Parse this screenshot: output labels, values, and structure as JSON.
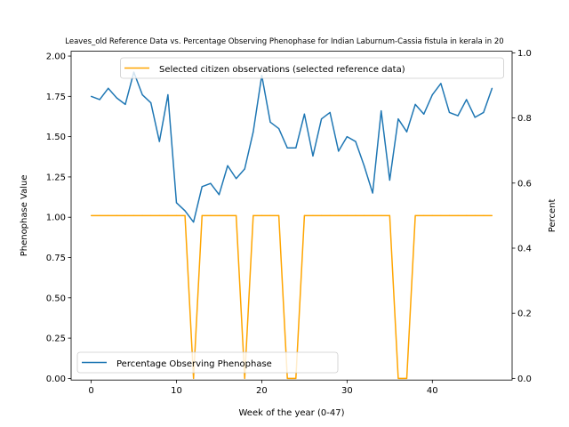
{
  "chart_data": {
    "type": "line",
    "title": "Leaves_old Reference Data vs. Percentage Observing Phenophase for Indian Laburnum-Cassia fistula in kerala in 20",
    "xlabel": "Week of the year (0-47)",
    "ylabel_left": "Phenophase Value",
    "ylabel_right": "Percent",
    "xlim": [
      -2.35,
      49.35
    ],
    "ylim_left": [
      -0.01,
      2.03
    ],
    "ylim_right": [
      -0.005,
      1.005
    ],
    "x_ticks": [
      0,
      10,
      20,
      30,
      40
    ],
    "x_tick_labels": [
      "0",
      "10",
      "20",
      "30",
      "40"
    ],
    "y_left_ticks": [
      0.0,
      0.25,
      0.5,
      0.75,
      1.0,
      1.25,
      1.5,
      1.75,
      2.0
    ],
    "y_left_tick_labels": [
      "0.00",
      "0.25",
      "0.50",
      "0.75",
      "1.00",
      "1.25",
      "1.50",
      "1.75",
      "2.00"
    ],
    "y_right_ticks": [
      0.0,
      0.2,
      0.4,
      0.6,
      0.8,
      1.0
    ],
    "y_right_tick_labels": [
      "0.0",
      "0.2",
      "0.4",
      "0.6",
      "0.8",
      "1.0"
    ],
    "grid": false,
    "series": [
      {
        "name": "Percentage Observing Phenophase",
        "axis": "left",
        "color": "#1f77b4",
        "legend_position": "lower-left",
        "x": [
          0,
          1,
          2,
          3,
          4,
          5,
          6,
          7,
          8,
          9,
          10,
          11,
          12,
          13,
          14,
          15,
          16,
          17,
          18,
          19,
          20,
          21,
          22,
          23,
          24,
          25,
          26,
          27,
          28,
          29,
          30,
          31,
          32,
          33,
          34,
          35,
          36,
          37,
          38,
          39,
          40,
          41,
          42,
          43,
          44,
          45,
          46,
          47
        ],
        "values": [
          1.75,
          1.73,
          1.8,
          1.74,
          1.7,
          1.9,
          1.76,
          1.71,
          1.47,
          1.76,
          1.09,
          1.04,
          0.97,
          1.19,
          1.21,
          1.14,
          1.32,
          1.24,
          1.3,
          1.53,
          1.88,
          1.59,
          1.55,
          1.43,
          1.43,
          1.64,
          1.38,
          1.61,
          1.65,
          1.41,
          1.5,
          1.47,
          1.32,
          1.15,
          1.66,
          1.23,
          1.61,
          1.53,
          1.7,
          1.64,
          1.76,
          1.83,
          1.65,
          1.63,
          1.73,
          1.62,
          1.65,
          1.8
        ]
      },
      {
        "name": "Selected citizen observations (selected reference data)",
        "axis": "right",
        "color": "#ffa500",
        "legend_position": "top-right",
        "x": [
          0,
          1,
          2,
          3,
          4,
          5,
          6,
          7,
          8,
          9,
          10,
          11,
          12,
          13,
          14,
          15,
          16,
          17,
          18,
          19,
          20,
          21,
          22,
          23,
          24,
          25,
          26,
          27,
          28,
          29,
          30,
          31,
          32,
          33,
          34,
          35,
          36,
          37,
          38,
          39,
          40,
          41,
          42,
          43,
          44,
          45,
          46,
          47
        ],
        "values": [
          0.5,
          0.5,
          0.5,
          0.5,
          0.5,
          0.5,
          0.5,
          0.5,
          0.5,
          0.5,
          0.5,
          0.5,
          0,
          0.5,
          0.5,
          0.5,
          0.5,
          0.5,
          0,
          0.5,
          0.5,
          0.5,
          0.5,
          0,
          0,
          0.5,
          0.5,
          0.5,
          0.5,
          0.5,
          0.5,
          0.5,
          0.5,
          0.5,
          0.5,
          0.5,
          0,
          0,
          0.5,
          0.5,
          0.5,
          0.5,
          0.5,
          0.5,
          0.5,
          0.5,
          0.5,
          0.5
        ]
      }
    ]
  }
}
